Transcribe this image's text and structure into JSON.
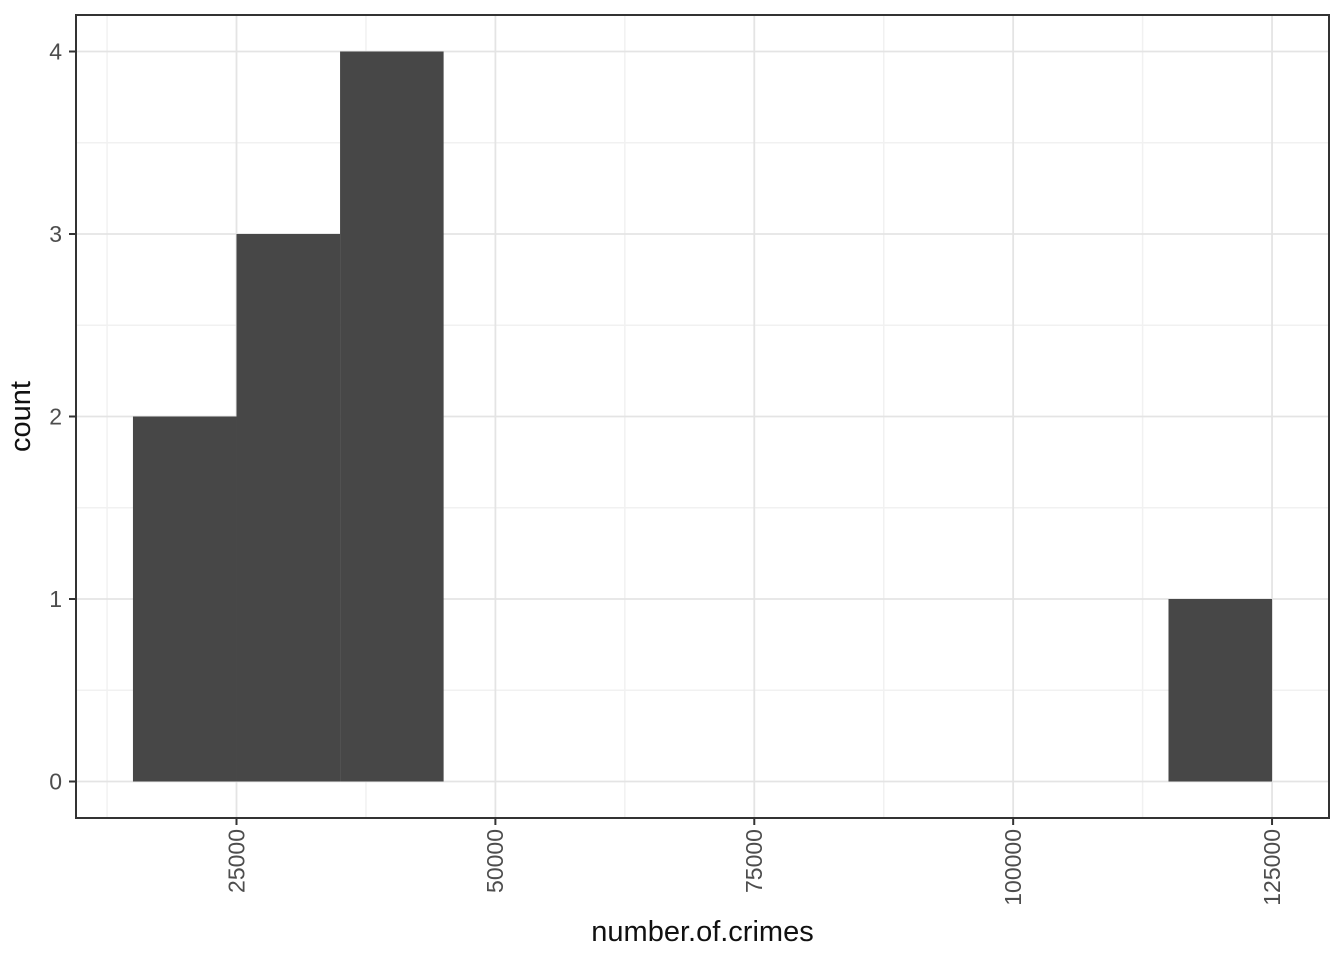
{
  "figure": {
    "background_color": "#FFFFFF",
    "panel_background_color": "#FFFFFF",
    "panel_border_color": "#333333"
  },
  "chart_data": {
    "type": "bar",
    "subtype": "histogram",
    "title": "",
    "xlabel": "number.of.crimes",
    "ylabel": "count",
    "binwidth": 10000,
    "bins": [
      {
        "x0": 15000,
        "x1": 25000,
        "count": 2
      },
      {
        "x0": 25000,
        "x1": 35000,
        "count": 3
      },
      {
        "x0": 35000,
        "x1": 45000,
        "count": 4
      },
      {
        "x0": 115000,
        "x1": 125000,
        "count": 1
      }
    ],
    "x_ticks": [
      25000,
      50000,
      75000,
      100000,
      125000
    ],
    "x_tick_labels": [
      "25000",
      "50000",
      "75000",
      "100000",
      "125000"
    ],
    "x_minor_ticks": [
      12500,
      37500,
      62500,
      87500,
      112500
    ],
    "y_ticks": [
      0,
      1,
      2,
      3,
      4
    ],
    "y_tick_labels": [
      "0",
      "1",
      "2",
      "3",
      "4"
    ],
    "y_minor_ticks": [
      0.5,
      1.5,
      2.5,
      3.5
    ],
    "xlim": [
      9500,
      130500
    ],
    "ylim": [
      -0.2,
      4.2
    ],
    "x_tick_label_rotation": -90,
    "grid": true,
    "legend_position": "none",
    "bar_color": "#474747",
    "grid_major_color": "#E4E4E4",
    "grid_minor_color": "#F1F1F1",
    "tick_mark_color": "#333333",
    "tick_label_color": "#4D4D4D",
    "axis_title_color": "#111111"
  }
}
